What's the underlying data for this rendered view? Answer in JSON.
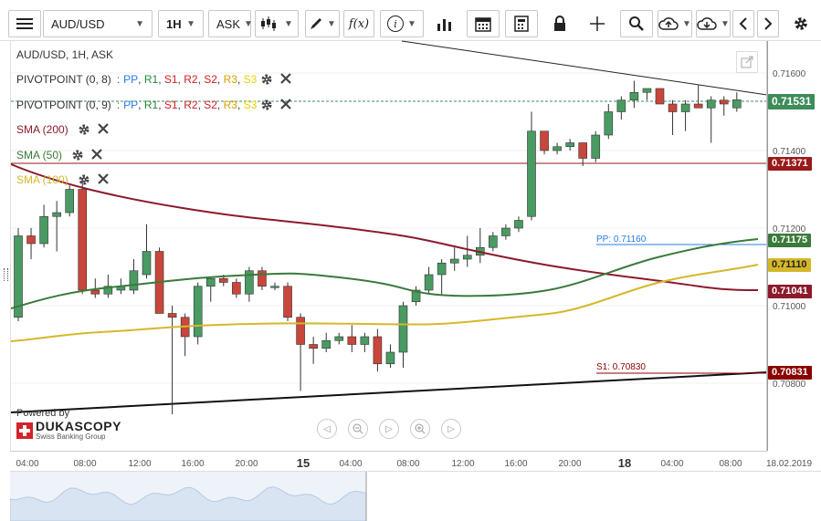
{
  "toolbar": {
    "symbol": "AUD/USD",
    "timeframe": "1H",
    "side": "ASK",
    "fx_label": "f(x)",
    "info_label": "i"
  },
  "chart_title": "AUD/USD, 1H, ASK",
  "legend": {
    "pivot1": {
      "name": "PIVOTPOINT (0, 8)",
      "items": [
        "PP",
        "R1",
        "S1",
        "R2",
        "S2",
        "R3",
        "S3"
      ]
    },
    "pivot2": {
      "name": "PIVOTPOINT (0, 9)",
      "items": [
        "PP",
        "R1",
        "S1",
        "R2",
        "S2",
        "R3",
        "S3"
      ]
    },
    "sma200": "SMA (200)",
    "sma50": "SMA (50)",
    "sma100": "SMA (100)"
  },
  "colors": {
    "up": "#4a9a63",
    "down": "#c8463b",
    "sma200": "#8b1a2b",
    "sma50": "#3a7a3a",
    "sma100": "#d4b82a",
    "pp": "#2a7be4",
    "s1": "#8b0000",
    "current": "#2e8b57"
  },
  "price_tags": {
    "current": "0.71531",
    "red_line": "0.71371",
    "sma50": "0.71175",
    "sma100": "0.71110",
    "sma200": "0.71041",
    "s1": "0.70831"
  },
  "annotations": {
    "pp": "PP: 0.71160",
    "s1": "S1: 0.70830"
  },
  "watermark": {
    "powered": "Powered by",
    "brand": "DUKASCOPY",
    "sub": "Swiss Banking Group"
  },
  "chart_data": {
    "type": "candlestick",
    "title": "AUD/USD, 1H, ASK",
    "y_ticks": [
      "0.71600",
      "0.71400",
      "0.71200",
      "0.71000",
      "0.70800"
    ],
    "x_ticks": [
      "04:00",
      "08:00",
      "12:00",
      "16:00",
      "20:00",
      "15",
      "04:00",
      "08:00",
      "12:00",
      "16:00",
      "20:00",
      "18",
      "04:00",
      "08:00",
      "18.02.2019"
    ],
    "ylim": [
      0.707,
      0.717
    ],
    "candles": [
      {
        "o": 0.7097,
        "h": 0.712,
        "l": 0.7096,
        "c": 0.7118
      },
      {
        "o": 0.7118,
        "h": 0.712,
        "l": 0.7112,
        "c": 0.7116
      },
      {
        "o": 0.7116,
        "h": 0.7126,
        "l": 0.7115,
        "c": 0.7123
      },
      {
        "o": 0.7123,
        "h": 0.7127,
        "l": 0.7114,
        "c": 0.7124
      },
      {
        "o": 0.7124,
        "h": 0.7131,
        "l": 0.7123,
        "c": 0.713
      },
      {
        "o": 0.713,
        "h": 0.7133,
        "l": 0.7103,
        "c": 0.7104
      },
      {
        "o": 0.7104,
        "h": 0.7107,
        "l": 0.7102,
        "c": 0.7103
      },
      {
        "o": 0.7103,
        "h": 0.7108,
        "l": 0.7102,
        "c": 0.7105
      },
      {
        "o": 0.7104,
        "h": 0.7107,
        "l": 0.7103,
        "c": 0.7105
      },
      {
        "o": 0.7104,
        "h": 0.7112,
        "l": 0.7103,
        "c": 0.7109
      },
      {
        "o": 0.7108,
        "h": 0.7121,
        "l": 0.7107,
        "c": 0.7114
      },
      {
        "o": 0.7114,
        "h": 0.7115,
        "l": 0.7098,
        "c": 0.7098
      },
      {
        "o": 0.7098,
        "h": 0.71,
        "l": 0.7072,
        "c": 0.7097
      },
      {
        "o": 0.7097,
        "h": 0.7098,
        "l": 0.7087,
        "c": 0.7092
      },
      {
        "o": 0.7092,
        "h": 0.7106,
        "l": 0.709,
        "c": 0.7105
      },
      {
        "o": 0.7105,
        "h": 0.7107,
        "l": 0.7101,
        "c": 0.7107
      },
      {
        "o": 0.7107,
        "h": 0.7108,
        "l": 0.7105,
        "c": 0.7106
      },
      {
        "o": 0.7106,
        "h": 0.7107,
        "l": 0.7102,
        "c": 0.7103
      },
      {
        "o": 0.7103,
        "h": 0.711,
        "l": 0.7101,
        "c": 0.7109
      },
      {
        "o": 0.7109,
        "h": 0.711,
        "l": 0.7104,
        "c": 0.7105
      },
      {
        "o": 0.7105,
        "h": 0.7106,
        "l": 0.7104,
        "c": 0.7105
      },
      {
        "o": 0.7105,
        "h": 0.7106,
        "l": 0.7096,
        "c": 0.7097
      },
      {
        "o": 0.7097,
        "h": 0.7098,
        "l": 0.7078,
        "c": 0.709
      },
      {
        "o": 0.709,
        "h": 0.7092,
        "l": 0.7085,
        "c": 0.7089
      },
      {
        "o": 0.7089,
        "h": 0.7093,
        "l": 0.7088,
        "c": 0.7091
      },
      {
        "o": 0.7091,
        "h": 0.7093,
        "l": 0.709,
        "c": 0.7092
      },
      {
        "o": 0.7092,
        "h": 0.7095,
        "l": 0.7088,
        "c": 0.709
      },
      {
        "o": 0.709,
        "h": 0.7093,
        "l": 0.7088,
        "c": 0.7092
      },
      {
        "o": 0.7092,
        "h": 0.7094,
        "l": 0.7083,
        "c": 0.7085
      },
      {
        "o": 0.7085,
        "h": 0.709,
        "l": 0.7084,
        "c": 0.7088
      },
      {
        "o": 0.7088,
        "h": 0.7101,
        "l": 0.7084,
        "c": 0.71
      },
      {
        "o": 0.7101,
        "h": 0.7105,
        "l": 0.71,
        "c": 0.7104
      },
      {
        "o": 0.7104,
        "h": 0.711,
        "l": 0.7103,
        "c": 0.7108
      },
      {
        "o": 0.7108,
        "h": 0.7112,
        "l": 0.7103,
        "c": 0.7111
      },
      {
        "o": 0.7111,
        "h": 0.7115,
        "l": 0.7109,
        "c": 0.7112
      },
      {
        "o": 0.7112,
        "h": 0.7118,
        "l": 0.711,
        "c": 0.7113
      },
      {
        "o": 0.7113,
        "h": 0.712,
        "l": 0.7111,
        "c": 0.7115
      },
      {
        "o": 0.7115,
        "h": 0.7119,
        "l": 0.7114,
        "c": 0.7118
      },
      {
        "o": 0.7118,
        "h": 0.7121,
        "l": 0.7117,
        "c": 0.712
      },
      {
        "o": 0.712,
        "h": 0.7123,
        "l": 0.7119,
        "c": 0.7122
      },
      {
        "o": 0.7123,
        "h": 0.715,
        "l": 0.7122,
        "c": 0.7145
      },
      {
        "o": 0.7145,
        "h": 0.7145,
        "l": 0.7139,
        "c": 0.714
      },
      {
        "o": 0.714,
        "h": 0.7142,
        "l": 0.7139,
        "c": 0.7141
      },
      {
        "o": 0.7141,
        "h": 0.7143,
        "l": 0.714,
        "c": 0.7142
      },
      {
        "o": 0.7142,
        "h": 0.7142,
        "l": 0.7136,
        "c": 0.7138
      },
      {
        "o": 0.7138,
        "h": 0.7145,
        "l": 0.7137,
        "c": 0.7144
      },
      {
        "o": 0.7144,
        "h": 0.7152,
        "l": 0.7143,
        "c": 0.715
      },
      {
        "o": 0.715,
        "h": 0.7154,
        "l": 0.7148,
        "c": 0.7153
      },
      {
        "o": 0.7153,
        "h": 0.7158,
        "l": 0.7151,
        "c": 0.7155
      },
      {
        "o": 0.7155,
        "h": 0.7156,
        "l": 0.7153,
        "c": 0.7156
      },
      {
        "o": 0.7156,
        "h": 0.7156,
        "l": 0.7152,
        "c": 0.7152
      },
      {
        "o": 0.7152,
        "h": 0.7153,
        "l": 0.7144,
        "c": 0.715
      },
      {
        "o": 0.715,
        "h": 0.7153,
        "l": 0.7145,
        "c": 0.7152
      },
      {
        "o": 0.7152,
        "h": 0.7157,
        "l": 0.7151,
        "c": 0.7151
      },
      {
        "o": 0.7151,
        "h": 0.7154,
        "l": 0.7142,
        "c": 0.7153
      },
      {
        "o": 0.7153,
        "h": 0.7154,
        "l": 0.7149,
        "c": 0.7152
      },
      {
        "o": 0.7151,
        "h": 0.7155,
        "l": 0.715,
        "c": 0.71531
      }
    ]
  }
}
